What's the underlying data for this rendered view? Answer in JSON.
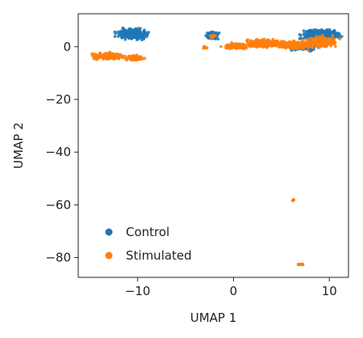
{
  "chart_data": {
    "type": "scatter",
    "xlabel": "UMAP 1",
    "ylabel": "UMAP 2",
    "xlim": [
      -16.2,
      12.0
    ],
    "ylim": [
      -87.5,
      12.5
    ],
    "xticks": [
      -10,
      0,
      10
    ],
    "yticks": [
      0,
      -20,
      -40,
      -60,
      -80
    ],
    "xtick_labels": [
      "−10",
      "0",
      "10"
    ],
    "ytick_labels": [
      "0",
      "−20",
      "−40",
      "−60",
      "−80"
    ],
    "grid": false,
    "legend_position": "bottom-left",
    "series": [
      {
        "name": "Control",
        "color": "#1f77b4",
        "clusters": [
          {
            "cx": -10.5,
            "cy": 4.8,
            "rx": 1.8,
            "ry": 2.2,
            "n": 260
          },
          {
            "cx": -2.3,
            "cy": 4.2,
            "rx": 0.8,
            "ry": 1.6,
            "n": 60
          },
          {
            "cx": 9.1,
            "cy": 4.4,
            "rx": 2.2,
            "ry": 2.6,
            "n": 320
          },
          {
            "cx": 7.2,
            "cy": -0.2,
            "rx": 1.6,
            "ry": 1.4,
            "n": 80
          }
        ]
      },
      {
        "name": "Stimulated",
        "color": "#ff7f0e",
        "clusters": [
          {
            "cx": -13.0,
            "cy": -3.6,
            "rx": 1.8,
            "ry": 1.3,
            "n": 200
          },
          {
            "cx": -10.5,
            "cy": -4.3,
            "rx": 1.1,
            "ry": 1.1,
            "n": 90
          },
          {
            "cx": 0.2,
            "cy": 0.2,
            "rx": 1.4,
            "ry": 1.2,
            "n": 130
          },
          {
            "cx": 3.2,
            "cy": 1.3,
            "rx": 2.2,
            "ry": 1.7,
            "n": 280
          },
          {
            "cx": 6.3,
            "cy": 0.6,
            "rx": 1.6,
            "ry": 1.6,
            "n": 220
          },
          {
            "cx": 9.2,
            "cy": 1.8,
            "rx": 1.8,
            "ry": 2.3,
            "n": 200
          },
          {
            "cx": -3.0,
            "cy": -0.3,
            "rx": 0.25,
            "ry": 0.5,
            "n": 10
          },
          {
            "cx": -2.2,
            "cy": 4.0,
            "rx": 0.4,
            "ry": 0.9,
            "n": 14
          },
          {
            "cx": 6.2,
            "cy": -58.2,
            "rx": 0.15,
            "ry": 0.35,
            "n": 6
          },
          {
            "cx": 7.0,
            "cy": -82.6,
            "rx": 0.45,
            "ry": 0.3,
            "n": 12
          }
        ]
      }
    ]
  }
}
